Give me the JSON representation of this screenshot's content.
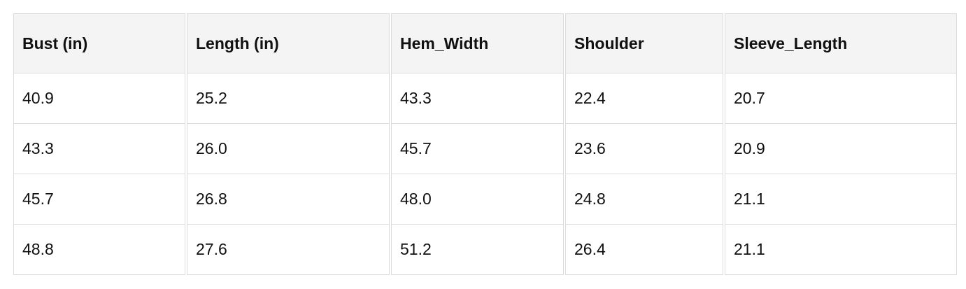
{
  "table": {
    "headers": [
      "Bust (in)",
      "Length (in)",
      "Hem_Width",
      "Shoulder",
      "Sleeve_Length"
    ],
    "rows": [
      [
        "40.9",
        "25.2",
        "43.3",
        "22.4",
        "20.7"
      ],
      [
        "43.3",
        "26.0",
        "45.7",
        "23.6",
        "20.9"
      ],
      [
        "45.7",
        "26.8",
        "48.0",
        "24.8",
        "21.1"
      ],
      [
        "48.8",
        "27.6",
        "51.2",
        "26.4",
        "21.1"
      ]
    ]
  }
}
